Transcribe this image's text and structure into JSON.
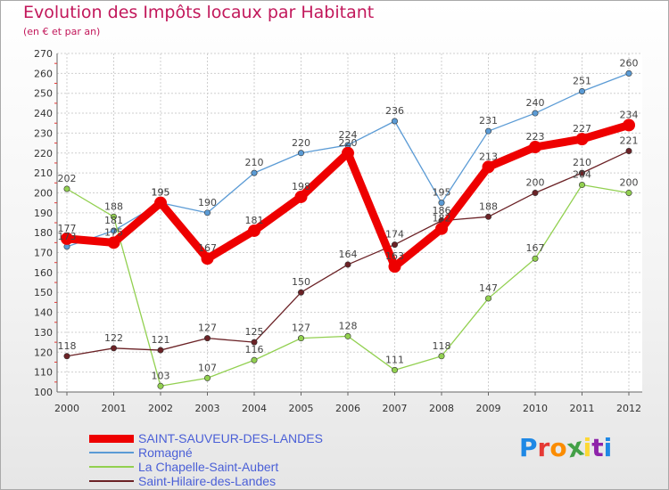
{
  "header": {
    "title": "Evolution des Impôts locaux par Habitant",
    "subtitle": "(en € et par an)"
  },
  "logo": {
    "letters": [
      "P",
      "r",
      "o",
      "x",
      "i",
      "t",
      "i"
    ],
    "colors": [
      "#1e88e5",
      "#e53935",
      "#fb8c00",
      "#43a047",
      "#fdd835",
      "#8e24aa",
      "#1e88e5"
    ]
  },
  "chart_data": {
    "type": "line",
    "title": "Evolution des Impôts locaux par Habitant",
    "subtitle": "(en € et par an)",
    "xlabel": "",
    "ylabel": "",
    "x": [
      "2000",
      "2001",
      "2002",
      "2003",
      "2004",
      "2005",
      "2006",
      "2007",
      "2008",
      "2009",
      "2010",
      "2011",
      "2012"
    ],
    "ylim": [
      100,
      270
    ],
    "yticks": [
      100,
      110,
      120,
      130,
      140,
      150,
      160,
      170,
      180,
      190,
      200,
      210,
      220,
      230,
      240,
      250,
      260,
      270
    ],
    "grid": true,
    "legend_position": "bottom",
    "series": [
      {
        "name": "SAINT-SAUVEUR-DES-LANDES",
        "values": [
          177,
          175,
          195,
          167,
          181,
          198,
          220,
          163,
          182,
          213,
          223,
          227,
          234
        ],
        "color": "#ee0000",
        "emphasis": true
      },
      {
        "name": "Romagné",
        "values": [
          173,
          181,
          195,
          190,
          210,
          220,
          224,
          236,
          195,
          231,
          240,
          251,
          260
        ],
        "color": "#5b9bd5",
        "emphasis": false
      },
      {
        "name": "La Chapelle-Saint-Aubert",
        "values": [
          202,
          188,
          103,
          107,
          116,
          127,
          128,
          111,
          118,
          147,
          167,
          204,
          200
        ],
        "color": "#92d050",
        "emphasis": false
      },
      {
        "name": "Saint-Hilaire-des-Landes",
        "values": [
          118,
          122,
          121,
          127,
          125,
          150,
          164,
          174,
          186,
          188,
          200,
          210,
          221
        ],
        "color": "#6b2226",
        "emphasis": false
      }
    ]
  }
}
